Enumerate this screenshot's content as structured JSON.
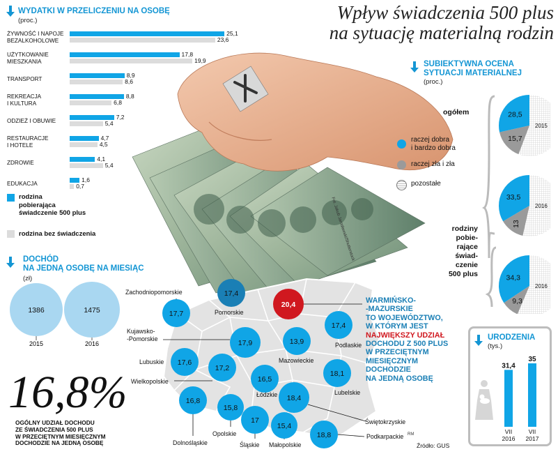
{
  "headline": {
    "line1": "Wpływ świadczenia 500 plus",
    "line2": "na sytuację materialną rodzin"
  },
  "credit": "Fot. Jakub Jarosławski/Shutterstock",
  "source": "Źródło: GUS",
  "rm": "RM",
  "colors": {
    "accent": "#10a5e6",
    "grey": "#dcdcdc",
    "dark_grey": "#9a9a9a",
    "red": "#d0181f",
    "dark_blue": "#1a7fb5"
  },
  "icons": {
    "section_arrow": "arrow-down-icon"
  },
  "chart_data": [
    {
      "id": "wydatki",
      "type": "bar",
      "title": "WYDATKI W PRZELICZENIU NA OSOBĘ",
      "subtitle": "(proc.)",
      "categories": [
        [
          "ŻYWNOŚĆ I NAPOJE",
          "BEZALKOHOLOWE"
        ],
        [
          "UŻYTKOWANIE",
          "MIESZKANIA"
        ],
        [
          "TRANSPORT"
        ],
        [
          "REKREACJA",
          "I KULTURA"
        ],
        [
          "ODZIEŻ I OBUWIE"
        ],
        [
          "RESTAURACJE",
          "I HOTELE"
        ],
        [
          "ZDROWIE"
        ],
        [
          "EDUKACJA"
        ]
      ],
      "series": [
        {
          "name": "rodzina pobierająca świadczenie 500 plus",
          "values": [
            25.1,
            17.8,
            8.9,
            8.8,
            7.2,
            4.7,
            4.1,
            1.6
          ],
          "labels": [
            "25,1",
            "17,8",
            "8,9",
            "8,8",
            "7,2",
            "4,7",
            "4,1",
            "1,6"
          ]
        },
        {
          "name": "rodzina bez świadczenia",
          "values": [
            23.6,
            19.9,
            8.6,
            6.8,
            5.4,
            4.5,
            5.4,
            0.7
          ],
          "labels": [
            "23,6",
            "19,9",
            "8,6",
            "6,8",
            "5,4",
            "4,5",
            "5,4",
            "0,7"
          ]
        }
      ],
      "legend": [
        {
          "lines": [
            "rodzina",
            "pobierająca",
            "świadczenie 500 plus"
          ]
        },
        {
          "lines": [
            "rodzina bez świadczenia"
          ]
        }
      ]
    },
    {
      "id": "dochod",
      "type": "bubble",
      "title": [
        "DOCHÓD",
        "NA JEDNĄ OSOBĘ NA MIESIĄC"
      ],
      "subtitle": "(zł)",
      "categories": [
        "2015",
        "2016"
      ],
      "values": [
        1386,
        1475
      ],
      "labels": [
        "1386",
        "1475"
      ]
    },
    {
      "id": "ocena",
      "type": "pie",
      "title": [
        "SUBIEKTYWNA OCENA",
        "SYTUACJI MATERIALNEJ"
      ],
      "subtitle": "(proc.)",
      "legend": [
        {
          "name_lines": [
            "raczej dobra",
            "i bardzo dobra"
          ]
        },
        {
          "name_lines": [
            "raczej zła i zła"
          ]
        },
        {
          "name_lines": [
            "pozostałe"
          ]
        }
      ],
      "groups": [
        {
          "label_lines": [
            "ogółem"
          ],
          "years": [
            {
              "year": "2015",
              "dobra": 28.5,
              "zla": 15.7,
              "labels": [
                "28,5",
                "15,7"
              ]
            }
          ]
        },
        {
          "label_lines": [
            "rodziny",
            "pobie-",
            "rające",
            "świad-",
            "czenie",
            "500 plus"
          ],
          "years": [
            {
              "year": "2016",
              "dobra": 33.5,
              "zla": 13,
              "labels": [
                "33,5",
                "13"
              ]
            },
            {
              "year": "2016",
              "dobra": 34.3,
              "zla": 9.3,
              "labels": [
                "34,3",
                "9,3"
              ]
            }
          ]
        }
      ]
    },
    {
      "id": "urodzenia",
      "type": "bar",
      "title": "URODZENIA",
      "subtitle": "(tys.)",
      "categories": [
        [
          "VII",
          "2016"
        ],
        [
          "VII",
          "2017"
        ]
      ],
      "values": [
        31.4,
        35
      ],
      "labels": [
        "31,4",
        "35"
      ]
    },
    {
      "id": "mapa",
      "type": "map",
      "regions": [
        {
          "name": "Zachodniopomorskie",
          "value": "17,7"
        },
        {
          "name": "Pomorskie",
          "value": "17,4"
        },
        {
          "name": "Warmińsko-Mazurskie",
          "value": "20,4"
        },
        {
          "name": "Podlaskie",
          "value": "17,4"
        },
        {
          "name": "Kujawsko--Pomorskie",
          "value": "17,9"
        },
        {
          "name": "Mazowieckie",
          "value": "13,9"
        },
        {
          "name": "Lubuskie",
          "value": "17,6"
        },
        {
          "name": "Wielkopolskie",
          "value": "17,2"
        },
        {
          "name": "Łódzkie",
          "value": "16,5"
        },
        {
          "name": "Lubelskie",
          "value": "18,1"
        },
        {
          "name": "Dolnośląskie",
          "value": "16,8"
        },
        {
          "name": "Opolskie",
          "value": "15,8"
        },
        {
          "name": "Śląskie",
          "value": "17"
        },
        {
          "name": "Świętokrzyskie",
          "value": "18,4"
        },
        {
          "name": "Małopolskie",
          "value": "15,4"
        },
        {
          "name": "Podkarpackie",
          "value": "18,8"
        }
      ],
      "callout": {
        "pre": [
          "WARMIŃSKO-",
          "-MAZURSKIE",
          "TO WOJEWÓDZTWO,",
          "W KTÓRYM JEST"
        ],
        "highlight": "NAJWIĘKSZY UDZIAŁ",
        "post": [
          "DOCHODU Z 500 PLUS",
          "W PRZECIĘTNYM",
          "MIESIĘCZNYM",
          "DOCHODZIE",
          "NA JEDNĄ OSOBĘ"
        ]
      }
    }
  ],
  "big_stat": {
    "value": "16,8%",
    "caption": [
      "OGÓLNY UDZIAŁ DOCHODU",
      "ZE ŚWIADCZENIA 500 PLUS",
      "W PRZECIĘTNYM MIESIĘCZNYM",
      "DOCHODZIE NA JEDNĄ OSOBĘ"
    ]
  }
}
